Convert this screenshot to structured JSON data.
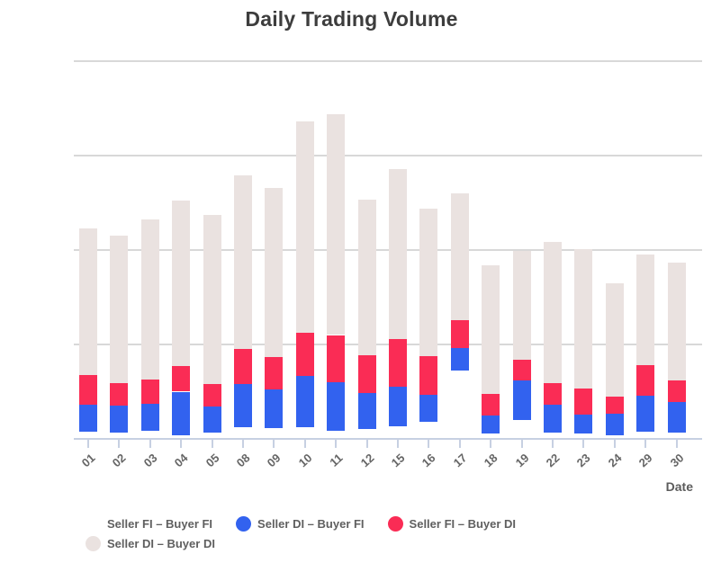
{
  "title": "Daily Trading Volume",
  "chart_data": {
    "type": "bar",
    "stacked": true,
    "title": "Daily Trading Volume",
    "xlabel": "Date",
    "ylabel": "",
    "categories": [
      "01",
      "02",
      "03",
      "04",
      "05",
      "08",
      "09",
      "10",
      "11",
      "12",
      "15",
      "16",
      "17",
      "18",
      "19",
      "22",
      "23",
      "24",
      "29",
      "30"
    ],
    "series": [
      {
        "name": "Seller FI – Buyer FI",
        "color": "transparent",
        "values": [
          8,
          7,
          9,
          4,
          7,
          12,
          11,
          12,
          9,
          10,
          13,
          18,
          72,
          6,
          20,
          7,
          6,
          4,
          8,
          7
        ]
      },
      {
        "name": "Seller DI – Buyer FI",
        "color": "#3262ef",
        "values": [
          28,
          28,
          28,
          46,
          27,
          46,
          41,
          55,
          51,
          39,
          42,
          29,
          24,
          19,
          42,
          29,
          20,
          23,
          38,
          32
        ]
      },
      {
        "name": "Seller FI – Buyer DI",
        "color": "#fa2c55",
        "values": [
          32,
          24,
          26,
          27,
          24,
          37,
          35,
          45,
          50,
          40,
          51,
          41,
          30,
          23,
          22,
          23,
          27,
          18,
          32,
          23
        ]
      },
      {
        "name": "Seller DI – Buyer DI",
        "color": "#eae2e0",
        "values": [
          155,
          156,
          169,
          175,
          179,
          184,
          179,
          224,
          234,
          164,
          180,
          156,
          134,
          136,
          115,
          150,
          148,
          120,
          117,
          125
        ]
      }
    ],
    "ylim": [
      0,
      400
    ],
    "gridline_values": [
      100,
      200,
      300,
      400
    ],
    "grid": "horizontal",
    "y_tick_labels_visible": false,
    "legend_position": "bottom-left",
    "colors": {
      "grid": "#d8d8d8",
      "x_axis": "#c7d0e2",
      "title_text": "#3d3d3d",
      "tick_label_text": "#666666",
      "legend_text": "#5f5f5f",
      "background": "#ffffff"
    }
  }
}
